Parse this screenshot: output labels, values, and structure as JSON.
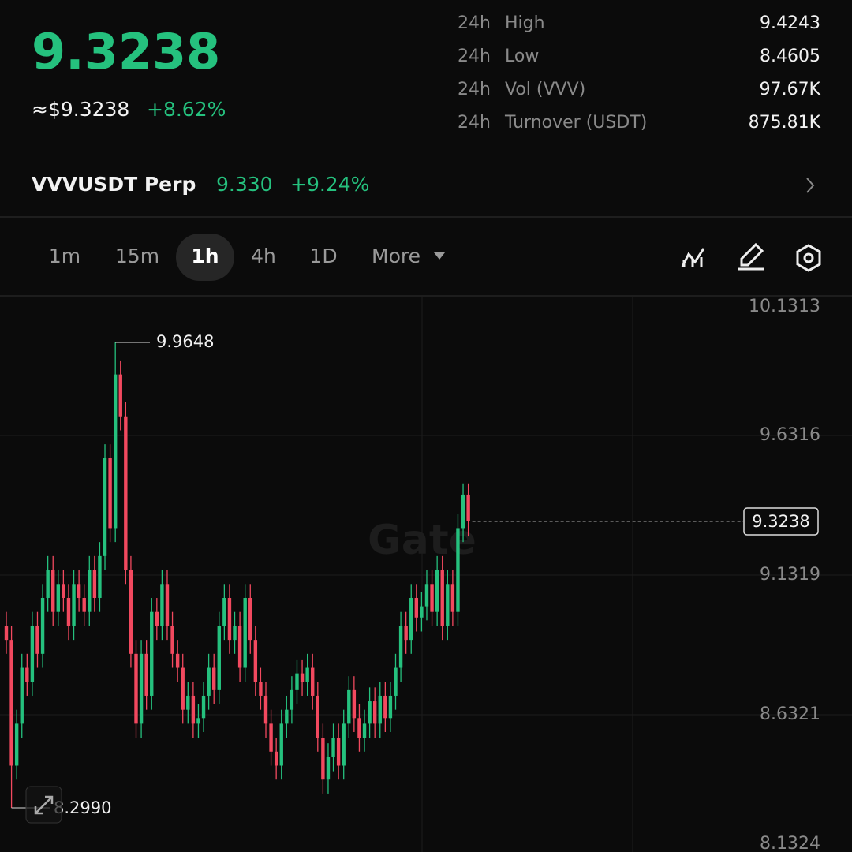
{
  "header": {
    "price": "9.3238",
    "fiat_price": "≈$9.3238",
    "change": "+8.62%",
    "stats": [
      {
        "period": "24h",
        "label": "High",
        "value": "9.4243"
      },
      {
        "period": "24h",
        "label": "Low",
        "value": "8.4605"
      },
      {
        "period": "24h",
        "label": "Vol (VVV)",
        "value": "97.67K"
      },
      {
        "period": "24h",
        "label": "Turnover (USDT)",
        "value": "875.81K"
      }
    ]
  },
  "perp": {
    "name": "VVVUSDT Perp",
    "price": "9.330",
    "change": "+9.24%"
  },
  "tabs": [
    "1m",
    "15m",
    "1h",
    "4h",
    "1D",
    "More"
  ],
  "selected_tab": "1h",
  "watermark": "Gate",
  "chart_data": {
    "type": "candlestick",
    "up_color": "#25c17e",
    "down_color": "#f2495f",
    "grid": true,
    "ylim": [
      8.1324,
      10.1313
    ],
    "yticks": [
      10.1313,
      9.6316,
      9.1319,
      8.6321,
      8.1324
    ],
    "last_price": 9.3238,
    "max_label": 9.9648,
    "min_label": {
      "value": 8.299,
      "label": "8.2990"
    },
    "open": [
      8.95,
      8.9,
      8.45,
      8.6,
      8.8,
      8.75,
      8.95,
      8.85,
      9.05,
      9.15,
      9.0,
      9.1,
      9.05,
      8.95,
      9.1,
      9.05,
      9.0,
      9.15,
      9.05,
      9.2,
      9.55,
      9.3,
      9.85,
      9.7,
      9.15,
      8.85,
      8.6,
      8.85,
      8.7,
      9.0,
      8.95,
      9.1,
      8.95,
      8.85,
      8.8,
      8.65,
      8.7,
      8.6,
      8.62,
      8.7,
      8.8,
      8.72,
      8.95,
      9.05,
      8.9,
      8.95,
      8.8,
      9.05,
      8.9,
      8.75,
      8.7,
      8.6,
      8.5,
      8.45,
      8.6,
      8.65,
      8.72,
      8.78,
      8.75,
      8.8,
      8.7,
      8.55,
      8.4,
      8.48,
      8.55,
      8.45,
      8.6,
      8.72,
      8.62,
      8.55,
      8.6,
      8.68,
      8.6,
      8.7,
      8.62,
      8.7,
      8.8,
      8.95,
      8.9,
      9.05,
      8.98,
      9.02,
      9.1,
      9.0,
      9.15,
      8.95,
      9.1,
      9.0,
      9.3,
      9.42
    ],
    "high": [
      9.0,
      8.95,
      8.65,
      8.85,
      8.85,
      9.0,
      9.0,
      9.1,
      9.2,
      9.2,
      9.15,
      9.15,
      9.1,
      9.15,
      9.15,
      9.1,
      9.2,
      9.2,
      9.25,
      9.6,
      9.6,
      9.9648,
      9.9,
      9.75,
      9.2,
      8.9,
      8.9,
      8.9,
      9.05,
      9.05,
      9.15,
      9.15,
      9.0,
      8.9,
      8.85,
      8.75,
      8.75,
      8.67,
      8.75,
      8.85,
      8.85,
      9.0,
      9.1,
      9.1,
      9.0,
      9.0,
      9.1,
      9.1,
      8.95,
      8.8,
      8.75,
      8.65,
      8.55,
      8.65,
      8.7,
      8.77,
      8.83,
      8.83,
      8.85,
      8.85,
      8.75,
      8.6,
      8.53,
      8.6,
      8.6,
      8.65,
      8.77,
      8.77,
      8.67,
      8.65,
      8.73,
      8.73,
      8.75,
      8.75,
      8.75,
      8.85,
      9.0,
      9.0,
      9.1,
      9.1,
      9.07,
      9.15,
      9.15,
      9.2,
      9.2,
      9.15,
      9.15,
      9.35,
      9.46,
      9.46
    ],
    "low": [
      8.85,
      8.299,
      8.4,
      8.55,
      8.7,
      8.7,
      8.8,
      8.8,
      9.0,
      8.95,
      8.95,
      9.0,
      8.9,
      8.9,
      9.0,
      8.95,
      8.95,
      9.0,
      9.0,
      9.15,
      9.25,
      9.25,
      9.65,
      9.1,
      8.8,
      8.55,
      8.55,
      8.65,
      8.65,
      8.9,
      8.9,
      8.9,
      8.8,
      8.75,
      8.6,
      8.6,
      8.55,
      8.55,
      8.57,
      8.65,
      8.67,
      8.67,
      8.9,
      8.85,
      8.85,
      8.75,
      8.75,
      8.85,
      8.7,
      8.65,
      8.55,
      8.45,
      8.4,
      8.4,
      8.55,
      8.6,
      8.67,
      8.7,
      8.7,
      8.65,
      8.5,
      8.35,
      8.35,
      8.43,
      8.4,
      8.4,
      8.55,
      8.57,
      8.5,
      8.5,
      8.55,
      8.55,
      8.55,
      8.57,
      8.57,
      8.65,
      8.75,
      8.85,
      8.85,
      8.93,
      8.93,
      8.97,
      8.95,
      8.95,
      8.9,
      8.9,
      8.95,
      8.95,
      9.25,
      9.27
    ],
    "close": [
      8.9,
      8.45,
      8.6,
      8.8,
      8.75,
      8.95,
      8.85,
      9.05,
      9.15,
      9.0,
      9.1,
      9.05,
      8.95,
      9.1,
      9.05,
      9.0,
      9.15,
      9.05,
      9.2,
      9.55,
      9.3,
      9.85,
      9.7,
      9.15,
      8.85,
      8.6,
      8.85,
      8.7,
      9.0,
      8.95,
      9.1,
      8.95,
      8.85,
      8.8,
      8.65,
      8.7,
      8.6,
      8.62,
      8.7,
      8.8,
      8.72,
      8.95,
      9.05,
      8.9,
      8.95,
      8.8,
      9.05,
      8.9,
      8.75,
      8.7,
      8.6,
      8.5,
      8.45,
      8.6,
      8.65,
      8.72,
      8.78,
      8.75,
      8.8,
      8.7,
      8.55,
      8.4,
      8.48,
      8.55,
      8.45,
      8.6,
      8.72,
      8.62,
      8.55,
      8.6,
      8.68,
      8.6,
      8.7,
      8.62,
      8.7,
      8.8,
      8.95,
      8.9,
      9.05,
      8.98,
      9.02,
      9.1,
      9.0,
      9.15,
      8.95,
      9.1,
      9.0,
      9.3,
      9.42,
      9.3238
    ]
  }
}
